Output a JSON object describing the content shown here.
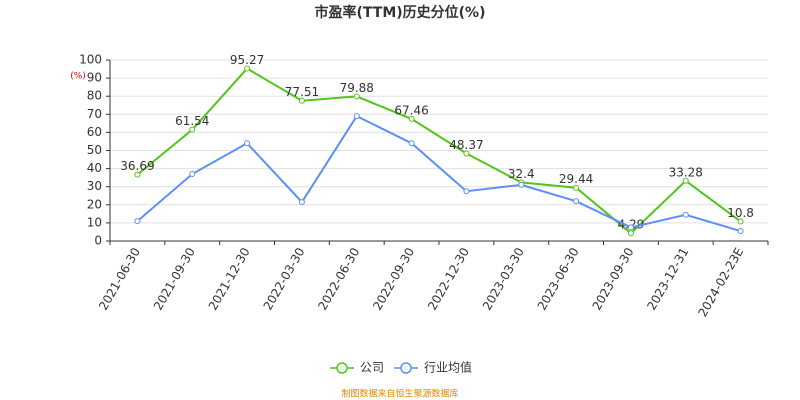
{
  "chart_data": {
    "type": "line",
    "title": "市盈率(TTM)历史分位(%)",
    "y_axis_label": "(%)",
    "categories": [
      "2021-06-30",
      "2021-09-30",
      "2021-12-30",
      "2022-03-30",
      "2022-06-30",
      "2022-09-30",
      "2022-12-30",
      "2023-03-30",
      "2023-06-30",
      "2023-09-30",
      "2023-12-31",
      "2024-02-23E"
    ],
    "series": [
      {
        "name": "公司",
        "color": "#52c41a",
        "values": [
          36.69,
          61.54,
          95.27,
          77.51,
          79.88,
          67.46,
          48.37,
          32.4,
          29.44,
          4.29,
          33.28,
          10.8
        ]
      },
      {
        "name": "行业均值",
        "color": "#5b8ff9",
        "values": [
          11,
          37,
          54,
          21.5,
          69,
          54,
          27.5,
          31,
          22,
          7.5,
          14.5,
          5.5
        ]
      }
    ],
    "ylim": [
      0,
      100
    ],
    "yticks": [
      0,
      10,
      20,
      30,
      40,
      50,
      60,
      70,
      80,
      90,
      100
    ],
    "grid": true,
    "source": "制图数据来自恒生聚源数据库"
  }
}
